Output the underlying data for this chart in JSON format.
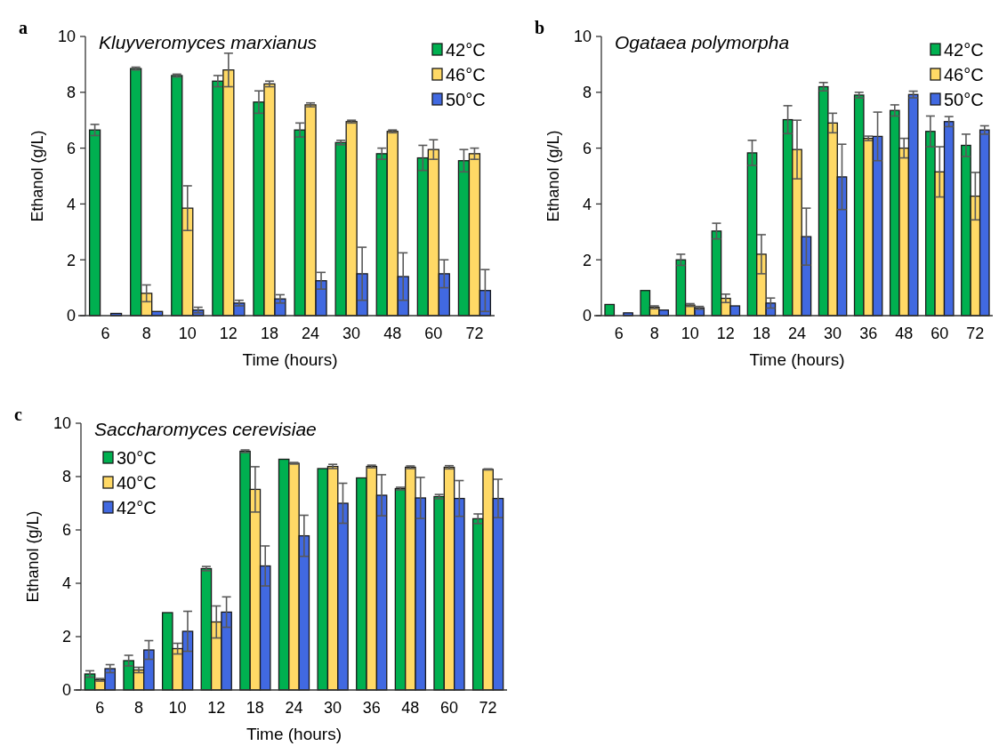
{
  "chart_data": [
    {
      "type": "bar",
      "title": "Kluyveromyces marxianus",
      "annotations": [
        "a"
      ],
      "xlabel": "Time (hours)",
      "ylabel": "Ethanol (g/L)",
      "categories": [
        "6",
        "8",
        "10",
        "12",
        "18",
        "24",
        "30",
        "48",
        "60",
        "72"
      ],
      "ylim": [
        0,
        10
      ],
      "yticks": [
        0,
        2,
        4,
        6,
        8,
        10
      ],
      "grid": false,
      "legend": "top right",
      "series": [
        {
          "name": "42°C",
          "color": "#00b050",
          "values": [
            6.65,
            8.85,
            8.6,
            8.4,
            7.65,
            6.65,
            6.2,
            5.8,
            5.65,
            5.55
          ],
          "errors": [
            0.2,
            0.05,
            0.05,
            0.2,
            0.4,
            0.25,
            0.08,
            0.2,
            0.45,
            0.4
          ]
        },
        {
          "name": "46°C",
          "color": "#ffd966",
          "values": [
            null,
            0.8,
            3.85,
            8.8,
            8.3,
            7.55,
            6.95,
            6.6,
            5.95,
            5.8
          ],
          "errors": [
            null,
            0.3,
            0.8,
            0.6,
            0.1,
            0.07,
            0.05,
            0.05,
            0.35,
            0.2
          ]
        },
        {
          "name": "50°C",
          "color": "#4169e1",
          "values": [
            0.08,
            0.15,
            0.2,
            0.45,
            0.6,
            1.25,
            1.5,
            1.4,
            1.5,
            0.9
          ],
          "errors": [
            null,
            null,
            0.1,
            0.1,
            0.15,
            0.3,
            0.95,
            0.85,
            0.5,
            0.75
          ]
        }
      ]
    },
    {
      "type": "bar",
      "title": "Ogataea polymorpha",
      "annotations": [
        "b"
      ],
      "xlabel": "Time (hours)",
      "ylabel": "Ethanol (g/L)",
      "categories": [
        "6",
        "8",
        "10",
        "12",
        "18",
        "24",
        "30",
        "36",
        "48",
        "60",
        "72"
      ],
      "ylim": [
        0,
        10
      ],
      "yticks": [
        0,
        2,
        4,
        6,
        8,
        10
      ],
      "grid": false,
      "legend": "top right",
      "series": [
        {
          "name": "42°C",
          "color": "#00b050",
          "values": [
            0.4,
            0.9,
            2.0,
            3.03,
            5.83,
            7.02,
            8.2,
            7.9,
            7.35,
            6.6,
            6.1
          ],
          "errors": [
            null,
            null,
            0.2,
            0.28,
            0.45,
            0.5,
            0.15,
            0.1,
            0.2,
            0.55,
            0.4
          ]
        },
        {
          "name": "46°C",
          "color": "#ffd966",
          "values": [
            null,
            0.3,
            0.38,
            0.62,
            2.2,
            5.95,
            6.9,
            6.35,
            6.0,
            5.15,
            4.28
          ],
          "errors": [
            null,
            0.05,
            0.05,
            0.15,
            0.7,
            1.05,
            0.35,
            0.08,
            0.35,
            0.9,
            0.85
          ]
        },
        {
          "name": "50°C",
          "color": "#4169e1",
          "values": [
            0.1,
            0.2,
            0.28,
            0.35,
            0.45,
            2.83,
            4.97,
            6.42,
            7.92,
            6.95,
            6.65
          ],
          "errors": [
            null,
            null,
            0.05,
            null,
            0.18,
            1.02,
            1.17,
            0.87,
            0.12,
            0.18,
            0.15
          ]
        }
      ]
    },
    {
      "type": "bar",
      "title": "Saccharomyces cerevisiae",
      "annotations": [
        "c"
      ],
      "xlabel": "Time (hours)",
      "ylabel": "Ethanol (g/L)",
      "categories": [
        "6",
        "8",
        "10",
        "12",
        "18",
        "24",
        "30",
        "36",
        "48",
        "60",
        "72"
      ],
      "ylim": [
        0,
        10
      ],
      "yticks": [
        0,
        2,
        4,
        6,
        8,
        10
      ],
      "grid": false,
      "legend": "top left",
      "series": [
        {
          "name": "30°C",
          "color": "#00b050",
          "values": [
            0.6,
            1.1,
            2.9,
            4.55,
            8.95,
            8.65,
            8.3,
            7.95,
            7.55,
            7.25,
            6.42
          ],
          "errors": [
            0.12,
            0.2,
            null,
            0.08,
            0.05,
            null,
            null,
            null,
            0.05,
            0.08,
            0.18
          ]
        },
        {
          "name": "40°C",
          "color": "#ffd966",
          "values": [
            0.38,
            0.75,
            1.55,
            2.55,
            7.52,
            8.5,
            8.38,
            8.38,
            8.35,
            8.35,
            8.27
          ],
          "errors": [
            0.05,
            0.1,
            0.2,
            0.6,
            0.85,
            0.03,
            0.08,
            0.05,
            0.05,
            0.06,
            0.02
          ]
        },
        {
          "name": "42°C",
          "color": "#4169e1",
          "values": [
            0.8,
            1.5,
            2.2,
            2.92,
            4.65,
            5.78,
            7.0,
            7.3,
            7.2,
            7.18,
            7.18
          ],
          "errors": [
            0.15,
            0.35,
            0.75,
            0.57,
            0.75,
            0.77,
            0.75,
            0.77,
            0.77,
            0.67,
            0.72
          ]
        }
      ]
    }
  ]
}
